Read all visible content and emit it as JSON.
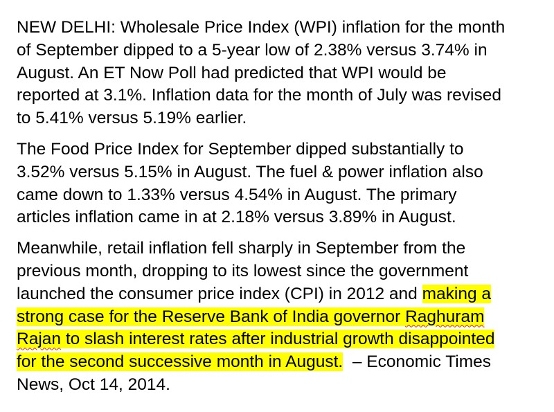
{
  "paragraphs": [
    {
      "lines": [
        "NEW DELHI: Wholesale Price Index (WPI) inflation for the month",
        "of September dipped to a 5-year low of 2.38% versus 3.74% in",
        "August. An ET Now Poll had predicted that WPI would be",
        "reported at 3.1%. Inflation data for the month of July was revised",
        "to 5.41% versus 5.19% earlier."
      ]
    },
    {
      "lines": [
        "The Food Price Index for September dipped substantially to",
        "3.52% versus 5.15% in August. The fuel & power inflation also",
        "came down to 1.33% versus 4.54% in August. The primary",
        "articles inflation came in at 2.18% versus 3.89% in August."
      ]
    },
    {
      "lines": [
        "Meanwhile, retail inflation fell sharply in September from the",
        "previous month, dropping to its lowest since the government"
      ],
      "l3_plain": "launched the consumer price index (CPI) in 2012 and ",
      "l3_hl": "making a",
      "l4_hl": "strong case for the Reserve Bank of India governor ",
      "l4_sp": "Raghuram",
      "l5_sp": "Rajan",
      "l5_hl": " to slash interest rates after industrial growth disappointed",
      "l6_hl": "for the second successive month in August.",
      "l6_plain": "  – Economic Times",
      "l7_plain": "News, Oct 14, 2014."
    }
  ],
  "colors": {
    "highlight": "#ffff00",
    "spellcheck": "#e02020"
  }
}
